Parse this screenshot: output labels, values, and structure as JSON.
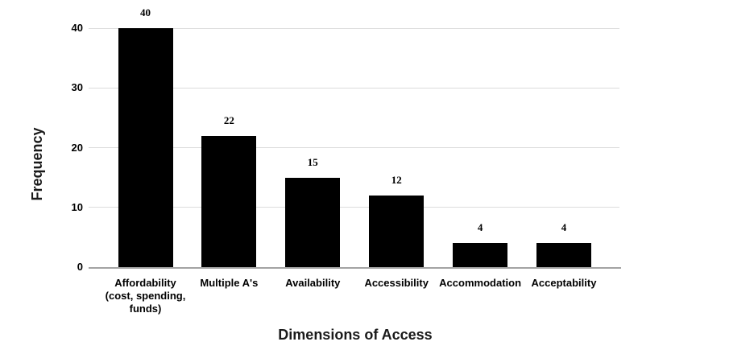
{
  "chart_data": {
    "type": "bar",
    "title": "",
    "xlabel": "Dimensions of Access",
    "ylabel": "Frequency",
    "categories": [
      "Affordability\n(cost, spending,\nfunds)",
      "Multiple A's",
      "Availability",
      "Accessibility",
      "Accommodation",
      "Acceptability"
    ],
    "values": [
      40,
      22,
      15,
      12,
      4,
      4
    ],
    "data_labels": [
      "40",
      "22",
      "15",
      "12",
      "4",
      "4"
    ],
    "yticks": [
      0,
      10,
      20,
      30,
      40
    ],
    "ylim": [
      0,
      40
    ],
    "grid": true,
    "legend": "none",
    "bar_color": "#000000",
    "gridline_color": "#dcdcdc",
    "axis_line_color": "#a3a3a3",
    "text_color": "#000000",
    "background_color": "#ffffff"
  }
}
